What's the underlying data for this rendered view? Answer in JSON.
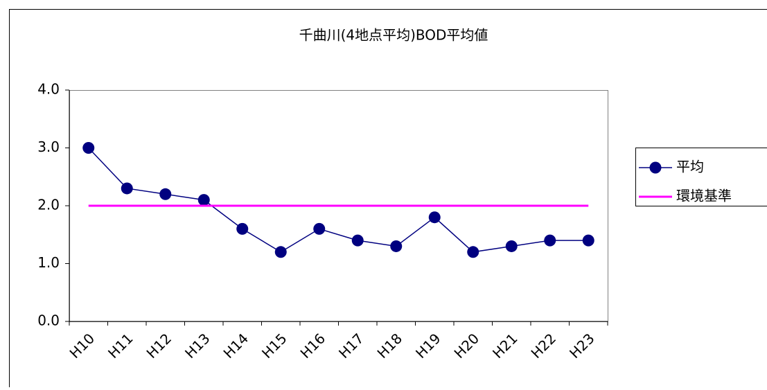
{
  "chart_data": {
    "type": "line",
    "title": "千曲川(4地点平均)BOD平均値",
    "categories": [
      "H10",
      "H11",
      "H12",
      "H13",
      "H14",
      "H15",
      "H16",
      "H17",
      "H18",
      "H19",
      "H20",
      "H21",
      "H22",
      "H23"
    ],
    "series": [
      {
        "name": "平均",
        "color": "#000080",
        "marker": "circle",
        "values": [
          3.0,
          2.3,
          2.2,
          2.1,
          1.6,
          1.2,
          1.6,
          1.4,
          1.3,
          1.8,
          1.2,
          1.3,
          1.4,
          1.4
        ]
      },
      {
        "name": "環境基準",
        "color": "#ff00ff",
        "marker": "none",
        "values": [
          2.0,
          2.0,
          2.0,
          2.0,
          2.0,
          2.0,
          2.0,
          2.0,
          2.0,
          2.0,
          2.0,
          2.0,
          2.0,
          2.0
        ]
      }
    ],
    "ylim": [
      0,
      4
    ],
    "yticks": [
      {
        "value": 0,
        "label": "0.0"
      },
      {
        "value": 1,
        "label": "1.0"
      },
      {
        "value": 2,
        "label": "2.0"
      },
      {
        "value": 3,
        "label": "3.0"
      },
      {
        "value": 4,
        "label": "4.0"
      }
    ],
    "grid": false,
    "legend": "right"
  }
}
